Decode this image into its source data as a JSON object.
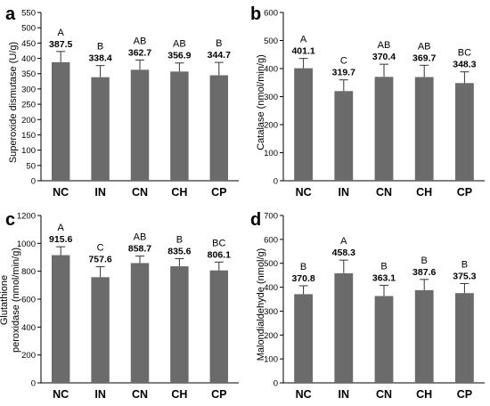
{
  "chart_data": [
    {
      "panel": "a",
      "type": "bar",
      "ylabel": "Superoxide dismutase (U/g)",
      "categories": [
        "NC",
        "IN",
        "CN",
        "CH",
        "CP"
      ],
      "values": [
        387.5,
        338.4,
        362.7,
        356.9,
        344.7
      ],
      "value_labels": [
        "387.5",
        "338.4",
        "362.7",
        "356.9",
        "344.7"
      ],
      "errors": [
        35,
        38,
        32,
        28,
        42
      ],
      "significance": [
        "A",
        "B",
        "AB",
        "AB",
        "B"
      ],
      "ylim": [
        0,
        550
      ],
      "yticks": [
        0,
        50,
        100,
        150,
        200,
        250,
        300,
        350,
        400,
        450,
        500,
        550
      ],
      "bar_color": "#6b6b6b",
      "grid": false
    },
    {
      "panel": "b",
      "type": "bar",
      "ylabel": "Catalase (nmol/min/g)",
      "categories": [
        "NC",
        "IN",
        "CN",
        "CH",
        "CP"
      ],
      "values": [
        401.1,
        319.7,
        370.4,
        369.7,
        348.3
      ],
      "value_labels": [
        "401.1",
        "319.7",
        "370.4",
        "369.7",
        "348.3"
      ],
      "errors": [
        35,
        40,
        45,
        42,
        40
      ],
      "significance": [
        "A",
        "C",
        "AB",
        "AB",
        "BC"
      ],
      "ylim": [
        0,
        600
      ],
      "yticks": [
        0,
        100,
        200,
        300,
        400,
        500,
        600
      ],
      "bar_color": "#6b6b6b",
      "grid": false
    },
    {
      "panel": "c",
      "type": "bar",
      "ylabel": "Glutathione peroxidase (nmol/min/g)",
      "ylabel_lines": [
        "Glutathione",
        "peroxidase (nmol/min/g)"
      ],
      "categories": [
        "NC",
        "IN",
        "CN",
        "CH",
        "CP"
      ],
      "values": [
        915.6,
        757.6,
        858.7,
        835.6,
        806.1
      ],
      "value_labels": [
        "915.6",
        "757.6",
        "858.7",
        "835.6",
        "806.1"
      ],
      "errors": [
        60,
        75,
        50,
        55,
        60
      ],
      "significance": [
        "A",
        "C",
        "AB",
        "B",
        "BC"
      ],
      "ylim": [
        0,
        1200
      ],
      "yticks": [
        0,
        200,
        400,
        600,
        800,
        1000,
        1200
      ],
      "bar_color": "#6b6b6b",
      "grid": false
    },
    {
      "panel": "d",
      "type": "bar",
      "ylabel": "Malondialdehyde (nmol/g)",
      "categories": [
        "NC",
        "IN",
        "CN",
        "CH",
        "CP"
      ],
      "values": [
        370.8,
        458.3,
        363.1,
        387.6,
        375.3
      ],
      "value_labels": [
        "370.8",
        "458.3",
        "363.1",
        "387.6",
        "375.3"
      ],
      "errors": [
        35,
        55,
        45,
        45,
        40
      ],
      "significance": [
        "B",
        "A",
        "B",
        "B",
        "B"
      ],
      "ylim": [
        0,
        700
      ],
      "yticks": [
        0,
        100,
        200,
        300,
        400,
        500,
        600,
        700
      ],
      "bar_color": "#6b6b6b",
      "grid": false
    }
  ]
}
